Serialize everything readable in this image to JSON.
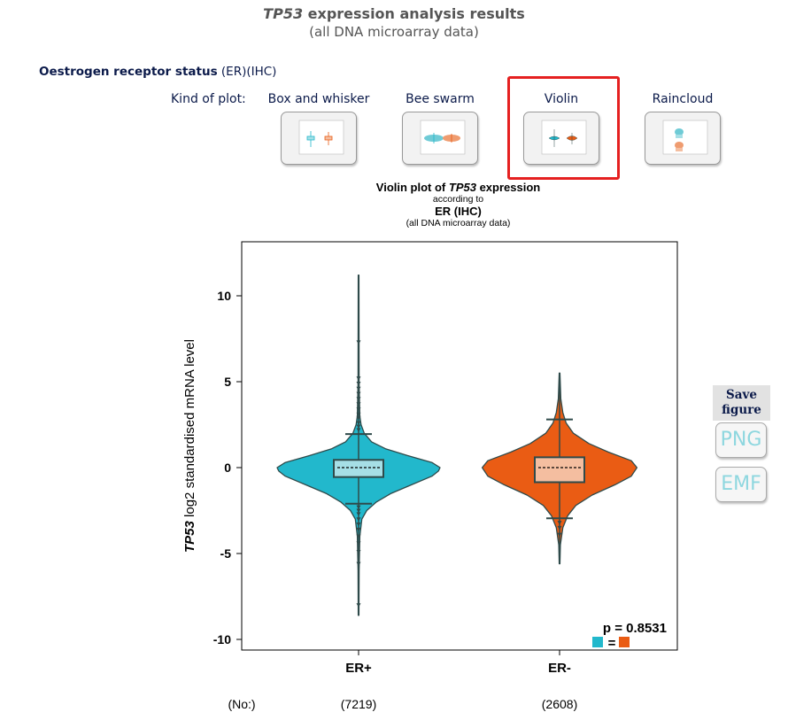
{
  "header": {
    "gene": "TP53",
    "title_rest": " expression analysis results",
    "subtitle": "(all DNA microarray data)"
  },
  "section": {
    "bold": "Oestrogen receptor status",
    "rest": " (ER)(IHC)"
  },
  "plot_kind": {
    "label": "Kind of plot:",
    "options": [
      {
        "label": "Box and whisker",
        "icon": "box-whisker-thumbnail-icon"
      },
      {
        "label": "Bee swarm",
        "icon": "bee-swarm-thumbnail-icon"
      },
      {
        "label": "Violin",
        "icon": "violin-thumbnail-icon",
        "selected": true
      },
      {
        "label": "Raincloud",
        "icon": "raincloud-thumbnail-icon"
      }
    ]
  },
  "save": {
    "title": "Save figure",
    "png": "PNG",
    "emf": "EMF"
  },
  "colors": {
    "er_pos": "#22b8cc",
    "er_neg": "#ea5c14",
    "er_pos_box": "#a6dfe6",
    "er_neg_box": "#f4bea0",
    "outline": "#2f4a4a",
    "highlight": "#e52020"
  },
  "chart_data": {
    "type": "violin",
    "title_prefix": "Violin plot of ",
    "title_gene": "TP53",
    "title_suffix": " expression",
    "title_line2": "according to",
    "title_line3": "ER (IHC)",
    "title_line4": "(all DNA microarray data)",
    "ylabel_gene": "TP53",
    "ylabel_rest": " log2 standardised mRNA level",
    "ylim": [
      -10.6,
      13.2
    ],
    "yticks": [
      10,
      5,
      0,
      -5,
      -10
    ],
    "ytick_labels": [
      "10",
      "5",
      "0",
      "-5",
      "-10"
    ],
    "categories": [
      "ER+",
      "ER-"
    ],
    "counts_label": "(No:)",
    "counts": [
      "(7219)",
      "(2608)"
    ],
    "series": [
      {
        "name": "ER+",
        "q1": -0.55,
        "median": 0.0,
        "q3": 0.45,
        "whisker_low": -2.1,
        "whisker_high": 1.95,
        "max": 11.2,
        "min": -8.6,
        "outliers": [
          7.3,
          5.2,
          4.9,
          4.6,
          4.3,
          4.0,
          3.7,
          3.4,
          3.1,
          2.9,
          2.6,
          2.4,
          2.2,
          -2.3,
          -2.5,
          -2.7,
          -3.0,
          -3.3,
          -3.6,
          -4.0,
          -4.4,
          -4.9,
          -5.6,
          -8.0
        ],
        "density": [
          [
            -8.6,
            0.004
          ],
          [
            -6,
            0.006
          ],
          [
            -4,
            0.015
          ],
          [
            -3,
            0.04
          ],
          [
            -2.5,
            0.1
          ],
          [
            -2,
            0.22
          ],
          [
            -1.5,
            0.4
          ],
          [
            -1,
            0.65
          ],
          [
            -0.5,
            0.9
          ],
          [
            -0.2,
            0.98
          ],
          [
            0,
            1.0
          ],
          [
            0.3,
            0.9
          ],
          [
            0.7,
            0.6
          ],
          [
            1.1,
            0.33
          ],
          [
            1.5,
            0.16
          ],
          [
            2,
            0.07
          ],
          [
            2.5,
            0.03
          ],
          [
            3,
            0.015
          ],
          [
            5,
            0.006
          ],
          [
            11.2,
            0.004
          ]
        ]
      },
      {
        "name": "ER-",
        "q1": -0.85,
        "median": 0.0,
        "q3": 0.6,
        "whisker_low": -2.95,
        "whisker_high": 2.8,
        "max": 5.5,
        "min": -5.6,
        "outliers": [
          -3.2,
          -3.5,
          -3.9
        ],
        "density": [
          [
            -5.6,
            0.004
          ],
          [
            -4.5,
            0.01
          ],
          [
            -3.5,
            0.04
          ],
          [
            -2.8,
            0.1
          ],
          [
            -2.2,
            0.2
          ],
          [
            -1.6,
            0.4
          ],
          [
            -1,
            0.68
          ],
          [
            -0.5,
            0.88
          ],
          [
            0,
            0.95
          ],
          [
            0.4,
            0.88
          ],
          [
            0.9,
            0.6
          ],
          [
            1.4,
            0.36
          ],
          [
            2,
            0.17
          ],
          [
            2.6,
            0.08
          ],
          [
            3.2,
            0.04
          ],
          [
            4,
            0.015
          ],
          [
            5.5,
            0.004
          ]
        ]
      }
    ],
    "p_label": "p = 0.8531",
    "comparison_sign": "="
  }
}
